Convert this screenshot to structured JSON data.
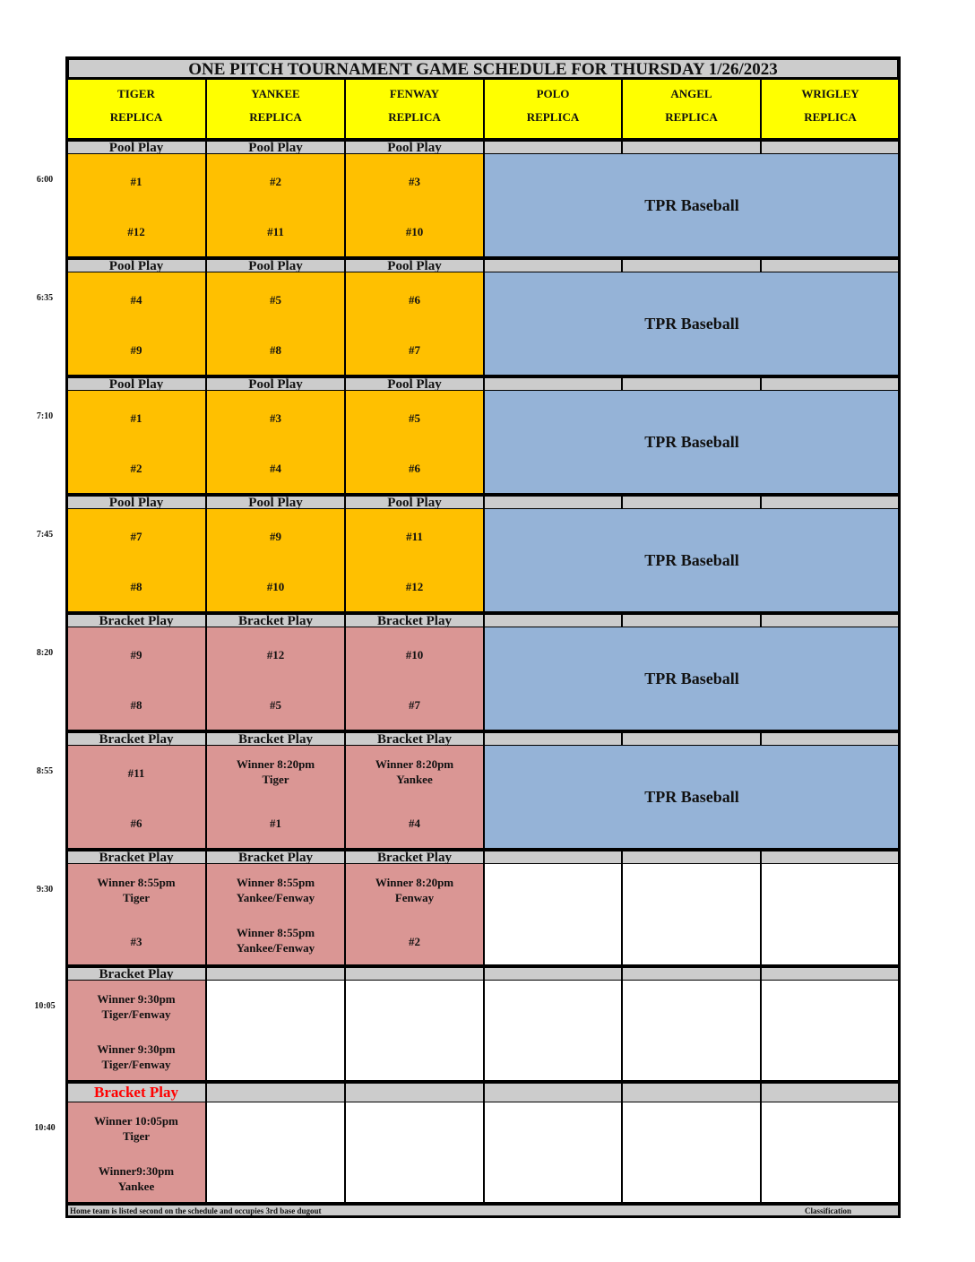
{
  "title": "ONE PITCH TOURNAMENT GAME SCHEDULE FOR THURSDAY 1/26/2023",
  "fields": [
    {
      "name": "TIGER",
      "sub": "REPLICA"
    },
    {
      "name": "YANKEE",
      "sub": "REPLICA"
    },
    {
      "name": "FENWAY",
      "sub": "REPLICA"
    },
    {
      "name": "POLO",
      "sub": "REPLICA"
    },
    {
      "name": "ANGEL",
      "sub": "REPLICA"
    },
    {
      "name": "WRIGLEY",
      "sub": "REPLICA"
    }
  ],
  "colors": {
    "pool": "#ffc000",
    "bracket": "#da9694",
    "tpr": "#95b3d7",
    "header": "#ffff00",
    "label": "#cccccc",
    "red_label": "#ff0000"
  },
  "rows": [
    {
      "time": "6:00",
      "labels": [
        "Pool Play",
        "Pool Play",
        "Pool Play",
        "",
        "",
        ""
      ],
      "type": "pool",
      "games": [
        [
          "#1",
          "#12"
        ],
        [
          "#2",
          "#11"
        ],
        [
          "#3",
          "#10"
        ]
      ],
      "tpr": "TPR Baseball"
    },
    {
      "time": "6:35",
      "labels": [
        "Pool Play",
        "Pool Play",
        "Pool Play",
        "",
        "",
        ""
      ],
      "type": "pool",
      "games": [
        [
          "#4",
          "#9"
        ],
        [
          "#5",
          "#8"
        ],
        [
          "#6",
          "#7"
        ]
      ],
      "tpr": "TPR Baseball"
    },
    {
      "time": "7:10",
      "labels": [
        "Pool Play",
        "Pool Play",
        "Pool Play",
        "",
        "",
        ""
      ],
      "type": "pool",
      "games": [
        [
          "#1",
          "#2"
        ],
        [
          "#3",
          "#4"
        ],
        [
          "#5",
          "#6"
        ]
      ],
      "tpr": "TPR Baseball"
    },
    {
      "time": "7:45",
      "labels": [
        "Pool Play",
        "Pool Play",
        "Pool Play",
        "",
        "",
        ""
      ],
      "type": "pool",
      "games": [
        [
          "#7",
          "#8"
        ],
        [
          "#9",
          "#10"
        ],
        [
          "#11",
          "#12"
        ]
      ],
      "tpr": "TPR Baseball"
    },
    {
      "time": "8:20",
      "labels": [
        "Bracket Play",
        "Bracket Play",
        "Bracket Play",
        "",
        "",
        ""
      ],
      "type": "bracket",
      "games": [
        [
          "#9",
          "#8"
        ],
        [
          "#12",
          "#5"
        ],
        [
          "#10",
          "#7"
        ]
      ],
      "tpr": "TPR Baseball"
    },
    {
      "time": "8:55",
      "labels": [
        "Bracket Play",
        "Bracket Play",
        "Bracket Play",
        "",
        "",
        ""
      ],
      "type": "bracket",
      "games": [
        [
          "#11",
          "#6"
        ],
        [
          "Winner 8:20pm\nTiger",
          "#1"
        ],
        [
          "Winner 8:20pm\nYankee",
          "#4"
        ]
      ],
      "tpr": "TPR Baseball"
    },
    {
      "time": "9:30",
      "labels": [
        "Bracket Play",
        "Bracket Play",
        "Bracket Play",
        "",
        "",
        ""
      ],
      "type": "bracket",
      "games": [
        [
          "Winner 8:55pm\nTiger",
          "#3"
        ],
        [
          "Winner 8:55pm\nYankee/Fenway",
          "Winner 8:55pm\nYankee/Fenway"
        ],
        [
          "Winner 8:20pm\nFenway",
          "#2"
        ]
      ],
      "tpr": null
    },
    {
      "time": "10:05",
      "labels": [
        "Bracket Play",
        "",
        "",
        "",
        "",
        ""
      ],
      "type": "bracket",
      "games": [
        [
          "Winner 9:30pm\nTiger/Fenway",
          "Winner 9:30pm\nTiger/Fenway"
        ]
      ],
      "tpr": null
    },
    {
      "time": "10:40",
      "labels": [
        "Bracket Play",
        "",
        "",
        "",
        "",
        ""
      ],
      "type": "bracket",
      "red_label": true,
      "games": [
        [
          "Winner 10:05pm\nTiger",
          "Winner9:30pm\nYankee"
        ]
      ],
      "tpr": null
    }
  ],
  "footer": {
    "note": "Home team is listed second on the schedule and occupies 3rd base dugout",
    "classification": "Classification"
  }
}
